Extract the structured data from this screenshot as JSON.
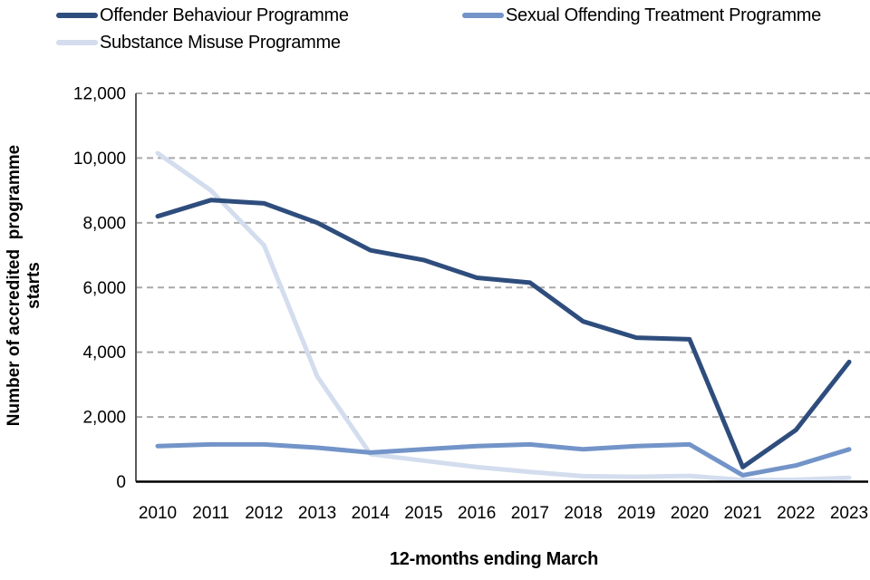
{
  "legend": {
    "items": [
      {
        "label": "Offender Behaviour Programme",
        "color": "#2E4D7D"
      },
      {
        "label": "Sexual Offending Treatment Programme",
        "color": "#7394C8"
      },
      {
        "label": "Substance Misuse Programme",
        "color": "#D3DDEE"
      }
    ]
  },
  "chart_data": {
    "type": "line",
    "title": "",
    "xlabel": "12-months ending March",
    "ylabel": "Number of accredited programme starts",
    "ylabel_lines": {
      "0": "Number of accredited  programme",
      "1": "starts"
    },
    "x": [
      2010,
      2011,
      2012,
      2013,
      2014,
      2015,
      2016,
      2017,
      2018,
      2019,
      2020,
      2021,
      2022,
      2023
    ],
    "series": [
      {
        "name": "Offender Behaviour Programme",
        "color": "#2E4D7D",
        "values": [
          8200,
          8700,
          8600,
          8000,
          7150,
          6850,
          6300,
          6150,
          4950,
          4450,
          4400,
          450,
          1600,
          3700
        ]
      },
      {
        "name": "Sexual Offending Treatment Programme",
        "color": "#7394C8",
        "values": [
          1100,
          1150,
          1150,
          1050,
          900,
          1000,
          1100,
          1150,
          1000,
          1100,
          1150,
          200,
          500,
          1000
        ]
      },
      {
        "name": "Substance Misuse Programme",
        "color": "#D3DDEE",
        "values": [
          10150,
          9000,
          7300,
          3250,
          850,
          650,
          450,
          300,
          170,
          150,
          180,
          50,
          60,
          120
        ]
      }
    ],
    "ylim": [
      0,
      12000
    ],
    "ytick_step": 2000,
    "ytick_labels": [
      "0",
      "2,000",
      "4,000",
      "6,000",
      "8,000",
      "10,000",
      "12,000"
    ],
    "grid": "dashed-horizontal",
    "grid_color": "#A9A9A9",
    "axis_color": "#595959",
    "baseline_color": "#000000",
    "legend_position": "top"
  }
}
